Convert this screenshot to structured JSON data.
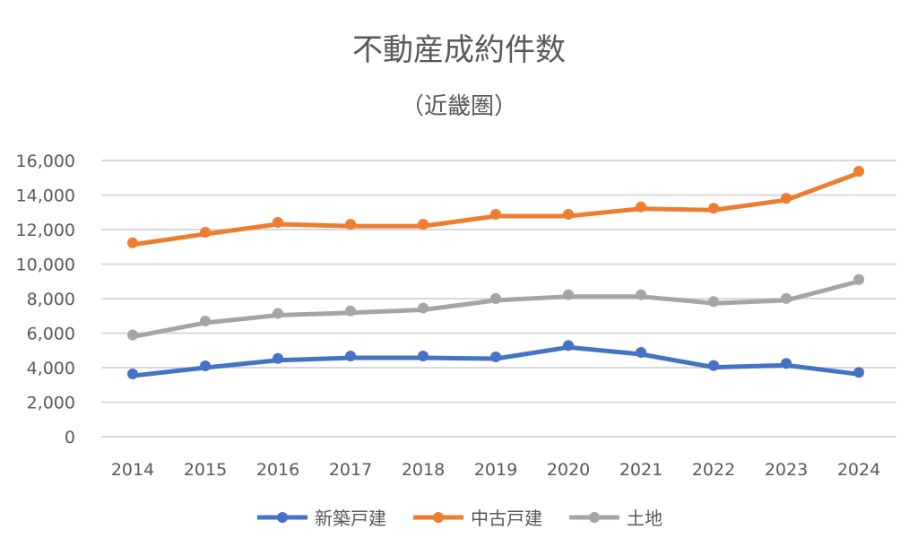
{
  "chart_data": {
    "type": "line",
    "title": "不動産成約件数",
    "subtitle": "（近畿圏）",
    "xlabel": "",
    "ylabel": "",
    "categories": [
      "2014",
      "2015",
      "2016",
      "2017",
      "2018",
      "2019",
      "2020",
      "2021",
      "2022",
      "2023",
      "2024"
    ],
    "ylim": [
      0,
      16000
    ],
    "yticks": [
      "0",
      "2,000",
      "4,000",
      "6,000",
      "8,000",
      "10,000",
      "12,000",
      "14,000",
      "16,000"
    ],
    "grid": true,
    "legend_position": "bottom",
    "series": [
      {
        "name": "新築戸建",
        "color": "#4472C4",
        "values": [
          3530,
          4000,
          4430,
          4570,
          4570,
          4520,
          5180,
          4780,
          4020,
          4140,
          3620
        ]
      },
      {
        "name": "中古戸建",
        "color": "#ED7D31",
        "values": [
          11130,
          11740,
          12310,
          12200,
          12200,
          12780,
          12780,
          13210,
          13130,
          13710,
          15270
        ]
      },
      {
        "name": "土地",
        "color": "#A5A5A5",
        "values": [
          5790,
          6600,
          7040,
          7180,
          7350,
          7900,
          8120,
          8120,
          7730,
          7900,
          9000
        ]
      }
    ]
  }
}
